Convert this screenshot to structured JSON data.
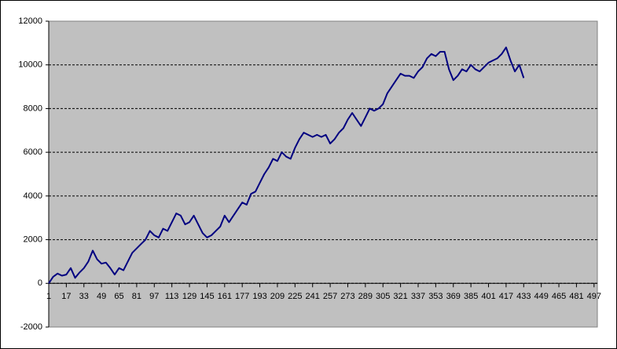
{
  "chart_data": {
    "type": "line",
    "x": [
      1,
      5,
      9,
      13,
      17,
      21,
      25,
      29,
      33,
      37,
      41,
      45,
      49,
      53,
      57,
      61,
      65,
      69,
      73,
      77,
      81,
      85,
      89,
      93,
      97,
      101,
      105,
      109,
      113,
      117,
      121,
      125,
      129,
      133,
      137,
      141,
      145,
      149,
      153,
      157,
      161,
      165,
      169,
      173,
      177,
      181,
      185,
      189,
      193,
      197,
      201,
      205,
      209,
      213,
      217,
      221,
      225,
      229,
      233,
      237,
      241,
      245,
      249,
      253,
      257,
      261,
      265,
      269,
      273,
      277,
      281,
      285,
      289,
      293,
      297,
      301,
      305,
      309,
      313,
      317,
      321,
      325,
      329,
      333,
      337,
      341,
      345,
      349,
      353,
      357,
      361,
      365,
      369,
      373,
      377,
      381,
      385,
      389,
      393,
      397,
      401,
      405,
      409,
      413,
      417,
      421,
      425,
      429,
      433
    ],
    "series": [
      {
        "color": "#000080",
        "values": [
          0,
          300,
          450,
          350,
          400,
          700,
          250,
          500,
          700,
          1000,
          1500,
          1100,
          900,
          950,
          700,
          400,
          700,
          600,
          1000,
          1400,
          1600,
          1800,
          2000,
          2400,
          2200,
          2100,
          2500,
          2400,
          2800,
          3200,
          3100,
          2700,
          2800,
          3100,
          2700,
          2300,
          2100,
          2200,
          2400,
          2600,
          3100,
          2800,
          3100,
          3400,
          3700,
          3600,
          4100,
          4200,
          4600,
          5000,
          5300,
          5700,
          5600,
          6000,
          5800,
          5700,
          6200,
          6600,
          6900,
          6800,
          6700,
          6800,
          6700,
          6800,
          6400,
          6600,
          6900,
          7100,
          7500,
          7800,
          7500,
          7200,
          7600,
          8000,
          7900,
          8000,
          8200,
          8700,
          9000,
          9300,
          9600,
          9500,
          9500,
          9400,
          9700,
          9900,
          10300,
          10500,
          10400,
          10600,
          10600,
          9800,
          9300,
          9500,
          9800,
          9700,
          10000,
          9800,
          9700,
          9900,
          10100,
          10200,
          10300,
          10500,
          10800,
          10200,
          9700,
          10000,
          9400
        ]
      }
    ],
    "xlim": [
      1,
      500
    ],
    "xticks": [
      1,
      17,
      33,
      49,
      65,
      81,
      97,
      113,
      129,
      145,
      161,
      177,
      193,
      209,
      225,
      241,
      257,
      273,
      289,
      305,
      321,
      337,
      353,
      369,
      385,
      401,
      417,
      433,
      449,
      465,
      481,
      497
    ],
    "ylim": [
      -2000,
      12000
    ],
    "yticks": [
      -2000,
      0,
      2000,
      4000,
      6000,
      8000,
      10000,
      12000
    ],
    "grid": true,
    "plot_background": "#c0c0c0"
  }
}
